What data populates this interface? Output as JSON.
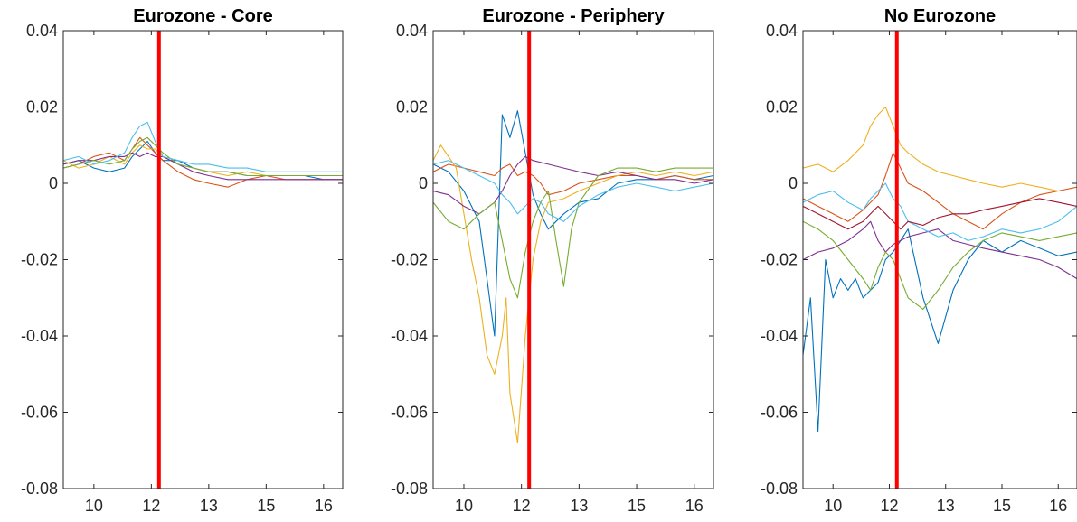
{
  "chart_data": [
    {
      "type": "line",
      "title": "Eurozone - Core",
      "xlabel": "",
      "ylabel": "",
      "xlim": [
        9.2,
        16.5
      ],
      "ylim": [
        -0.08,
        0.04
      ],
      "xticks": [
        10,
        11.5,
        13,
        14.5,
        16
      ],
      "xtick_labels": [
        "10",
        "12",
        "13",
        "15",
        "16"
      ],
      "yticks": [
        0.04,
        0.02,
        0,
        -0.02,
        -0.04,
        -0.06,
        -0.08
      ],
      "ytick_labels": [
        "0.04",
        "0.02",
        "0",
        "-0.02",
        "-0.04",
        "-0.06",
        "-0.08"
      ],
      "grid": false,
      "vline_x": 11.7,
      "vline_color": "#ff0000",
      "series": [
        {
          "color": "#0072BD",
          "x": [
            9.2,
            9.6,
            10.0,
            10.4,
            10.8,
            11.0,
            11.2,
            11.4,
            11.6,
            11.8,
            12.2,
            12.6,
            13.0,
            13.5,
            14.0,
            14.5,
            15.0,
            15.5,
            16.0,
            16.5
          ],
          "y": [
            0.005,
            0.006,
            0.004,
            0.003,
            0.004,
            0.007,
            0.009,
            0.011,
            0.008,
            0.006,
            0.006,
            0.004,
            0.003,
            0.003,
            0.002,
            0.002,
            0.002,
            0.002,
            0.001,
            0.001
          ]
        },
        {
          "color": "#D95319",
          "x": [
            9.2,
            9.6,
            10.0,
            10.4,
            10.8,
            11.0,
            11.2,
            11.4,
            11.6,
            11.8,
            12.2,
            12.6,
            13.0,
            13.5,
            14.0,
            14.5,
            15.0,
            15.5,
            16.0,
            16.5
          ],
          "y": [
            0.004,
            0.005,
            0.007,
            0.008,
            0.006,
            0.009,
            0.012,
            0.01,
            0.008,
            0.006,
            0.003,
            0.001,
            0.0,
            -0.001,
            0.001,
            0.002,
            0.001,
            0.001,
            0.001,
            0.001
          ]
        },
        {
          "color": "#EDB120",
          "x": [
            9.2,
            9.6,
            10.0,
            10.4,
            10.8,
            11.0,
            11.2,
            11.4,
            11.6,
            11.8,
            12.2,
            12.6,
            13.0,
            13.5,
            14.0,
            14.5,
            15.0,
            15.5,
            16.0,
            16.5
          ],
          "y": [
            0.006,
            0.004,
            0.005,
            0.007,
            0.005,
            0.008,
            0.01,
            0.009,
            0.009,
            0.007,
            0.005,
            0.004,
            0.003,
            0.002,
            0.003,
            0.002,
            0.002,
            0.002,
            0.002,
            0.002
          ]
        },
        {
          "color": "#7E2F8E",
          "x": [
            9.2,
            9.6,
            10.0,
            10.4,
            10.8,
            11.0,
            11.2,
            11.4,
            11.6,
            11.8,
            12.2,
            12.6,
            13.0,
            13.5,
            14.0,
            14.5,
            15.0,
            15.5,
            16.0,
            16.5
          ],
          "y": [
            0.005,
            0.006,
            0.006,
            0.007,
            0.007,
            0.008,
            0.007,
            0.008,
            0.007,
            0.007,
            0.005,
            0.003,
            0.002,
            0.001,
            0.001,
            0.001,
            0.001,
            0.001,
            0.001,
            0.001
          ]
        },
        {
          "color": "#77AC30",
          "x": [
            9.2,
            9.6,
            10.0,
            10.4,
            10.8,
            11.0,
            11.2,
            11.4,
            11.6,
            11.8,
            12.2,
            12.6,
            13.0,
            13.5,
            14.0,
            14.5,
            15.0,
            15.5,
            16.0,
            16.5
          ],
          "y": [
            0.004,
            0.005,
            0.006,
            0.005,
            0.006,
            0.009,
            0.011,
            0.012,
            0.01,
            0.008,
            0.005,
            0.004,
            0.003,
            0.003,
            0.002,
            0.002,
            0.002,
            0.002,
            0.002,
            0.002
          ]
        },
        {
          "color": "#4DBEEE",
          "x": [
            9.2,
            9.6,
            10.0,
            10.4,
            10.8,
            11.0,
            11.2,
            11.4,
            11.6,
            11.8,
            12.2,
            12.6,
            13.0,
            13.5,
            14.0,
            14.5,
            15.0,
            15.5,
            16.0,
            16.5
          ],
          "y": [
            0.006,
            0.007,
            0.005,
            0.006,
            0.008,
            0.012,
            0.015,
            0.016,
            0.011,
            0.007,
            0.006,
            0.005,
            0.005,
            0.004,
            0.004,
            0.003,
            0.003,
            0.003,
            0.003,
            0.003
          ]
        }
      ]
    },
    {
      "type": "line",
      "title": "Eurozone - Periphery",
      "xlabel": "",
      "ylabel": "",
      "xlim": [
        9.2,
        16.5
      ],
      "ylim": [
        -0.08,
        0.04
      ],
      "xticks": [
        10,
        11.5,
        13,
        14.5,
        16
      ],
      "xtick_labels": [
        "10",
        "12",
        "13",
        "15",
        "16"
      ],
      "yticks": [
        0.04,
        0.02,
        0,
        -0.02,
        -0.04,
        -0.06,
        -0.08
      ],
      "ytick_labels": [
        "0.04",
        "0.02",
        "0",
        "-0.02",
        "-0.04",
        "-0.06",
        "-0.08"
      ],
      "grid": false,
      "vline_x": 11.7,
      "vline_color": "#ff0000",
      "series": [
        {
          "color": "#0072BD",
          "x": [
            9.2,
            9.6,
            10.0,
            10.4,
            10.6,
            10.8,
            11.0,
            11.2,
            11.4,
            11.6,
            11.8,
            12.0,
            12.2,
            12.6,
            13.0,
            13.5,
            14.0,
            14.5,
            15.0,
            15.5,
            16.0,
            16.5
          ],
          "y": [
            0.005,
            0.003,
            -0.002,
            -0.01,
            -0.025,
            -0.04,
            0.018,
            0.012,
            0.019,
            0.008,
            -0.003,
            -0.008,
            -0.012,
            -0.008,
            -0.005,
            -0.004,
            0.0,
            0.001,
            0.001,
            0.002,
            0.001,
            0.002
          ]
        },
        {
          "color": "#D95319",
          "x": [
            9.2,
            9.6,
            10.0,
            10.4,
            10.8,
            11.0,
            11.2,
            11.4,
            11.6,
            11.8,
            12.0,
            12.2,
            12.6,
            13.0,
            13.5,
            14.0,
            14.5,
            15.0,
            15.5,
            16.0,
            16.5
          ],
          "y": [
            0.003,
            0.005,
            0.004,
            0.003,
            0.002,
            0.004,
            0.005,
            0.002,
            0.003,
            0.002,
            0.0,
            -0.003,
            -0.002,
            0.0,
            0.001,
            0.002,
            0.002,
            0.001,
            0.002,
            0.001,
            0.001
          ]
        },
        {
          "color": "#EDB120",
          "x": [
            9.2,
            9.4,
            9.8,
            10.2,
            10.4,
            10.6,
            10.8,
            11.0,
            11.1,
            11.2,
            11.4,
            11.6,
            11.8,
            12.0,
            12.2,
            12.6,
            13.0,
            13.5,
            14.0,
            14.5,
            15.0,
            15.5,
            16.0,
            16.5
          ],
          "y": [
            0.006,
            0.01,
            0.004,
            -0.02,
            -0.03,
            -0.045,
            -0.05,
            -0.04,
            -0.03,
            -0.055,
            -0.068,
            -0.04,
            -0.02,
            -0.01,
            -0.005,
            -0.004,
            -0.002,
            0.0,
            0.002,
            0.003,
            0.002,
            0.003,
            0.002,
            0.003
          ]
        },
        {
          "color": "#7E2F8E",
          "x": [
            9.2,
            9.6,
            10.0,
            10.4,
            10.8,
            11.0,
            11.2,
            11.4,
            11.6,
            11.8,
            12.2,
            12.6,
            13.0,
            13.5,
            14.0,
            14.5,
            15.0,
            15.5,
            16.0,
            16.5
          ],
          "y": [
            -0.002,
            -0.003,
            -0.006,
            -0.008,
            -0.005,
            -0.002,
            0.002,
            0.005,
            0.007,
            0.006,
            0.005,
            0.004,
            0.003,
            0.002,
            0.003,
            0.002,
            0.001,
            0.001,
            0.0,
            0.001
          ]
        },
        {
          "color": "#77AC30",
          "x": [
            9.2,
            9.6,
            10.0,
            10.4,
            10.8,
            11.0,
            11.2,
            11.4,
            11.6,
            11.8,
            12.0,
            12.2,
            12.4,
            12.6,
            12.8,
            13.0,
            13.5,
            14.0,
            14.5,
            15.0,
            15.5,
            16.0,
            16.5
          ],
          "y": [
            -0.005,
            -0.01,
            -0.012,
            -0.008,
            -0.005,
            -0.015,
            -0.025,
            -0.03,
            -0.018,
            -0.01,
            -0.005,
            -0.002,
            -0.015,
            -0.027,
            -0.012,
            -0.005,
            0.002,
            0.004,
            0.004,
            0.003,
            0.004,
            0.004,
            0.004
          ]
        },
        {
          "color": "#4DBEEE",
          "x": [
            9.2,
            9.6,
            10.0,
            10.4,
            10.8,
            11.0,
            11.2,
            11.4,
            11.6,
            11.8,
            12.0,
            12.2,
            12.6,
            13.0,
            13.5,
            14.0,
            14.5,
            15.0,
            15.5,
            16.0,
            16.5
          ],
          "y": [
            0.005,
            0.006,
            0.004,
            0.002,
            0.0,
            -0.003,
            -0.005,
            -0.008,
            -0.006,
            -0.004,
            -0.005,
            -0.008,
            -0.01,
            -0.006,
            -0.003,
            -0.001,
            0.0,
            -0.001,
            -0.002,
            -0.001,
            0.0
          ]
        }
      ]
    },
    {
      "type": "line",
      "title": "No Eurozone",
      "xlabel": "",
      "ylabel": "",
      "xlim": [
        9.2,
        16.5
      ],
      "ylim": [
        -0.08,
        0.04
      ],
      "xticks": [
        10,
        11.5,
        13,
        14.5,
        16
      ],
      "xtick_labels": [
        "10",
        "12",
        "13",
        "15",
        "16"
      ],
      "yticks": [
        0.04,
        0.02,
        0,
        -0.02,
        -0.04,
        -0.06,
        -0.08
      ],
      "ytick_labels": [
        "0.04",
        "0.02",
        "0",
        "-0.02",
        "-0.04",
        "-0.06",
        "-0.08"
      ],
      "grid": false,
      "vline_x": 11.7,
      "vline_color": "#ff0000",
      "series": [
        {
          "color": "#0072BD",
          "x": [
            9.2,
            9.4,
            9.6,
            9.8,
            10.0,
            10.2,
            10.4,
            10.6,
            10.8,
            11.0,
            11.2,
            11.4,
            11.6,
            11.8,
            12.0,
            12.4,
            12.8,
            13.2,
            13.6,
            14.0,
            14.5,
            15.0,
            15.5,
            16.0,
            16.5
          ],
          "y": [
            -0.045,
            -0.03,
            -0.065,
            -0.02,
            -0.03,
            -0.025,
            -0.028,
            -0.025,
            -0.03,
            -0.028,
            -0.026,
            -0.02,
            -0.018,
            -0.015,
            -0.012,
            -0.03,
            -0.042,
            -0.028,
            -0.02,
            -0.015,
            -0.018,
            -0.015,
            -0.017,
            -0.019,
            -0.018
          ]
        },
        {
          "color": "#D95319",
          "x": [
            9.2,
            9.6,
            10.0,
            10.4,
            10.8,
            11.0,
            11.2,
            11.4,
            11.6,
            11.8,
            12.0,
            12.4,
            12.8,
            13.2,
            13.6,
            14.0,
            14.5,
            15.0,
            15.5,
            16.0,
            16.5
          ],
          "y": [
            -0.004,
            -0.006,
            -0.008,
            -0.01,
            -0.007,
            -0.005,
            -0.003,
            0.002,
            0.008,
            0.004,
            0.0,
            -0.002,
            -0.005,
            -0.008,
            -0.01,
            -0.012,
            -0.008,
            -0.005,
            -0.003,
            -0.002,
            -0.001
          ]
        },
        {
          "color": "#EDB120",
          "x": [
            9.2,
            9.6,
            10.0,
            10.4,
            10.8,
            11.0,
            11.2,
            11.4,
            11.6,
            11.8,
            12.0,
            12.4,
            12.8,
            13.2,
            13.6,
            14.0,
            14.5,
            15.0,
            15.5,
            16.0,
            16.5
          ],
          "y": [
            0.004,
            0.005,
            0.003,
            0.006,
            0.01,
            0.015,
            0.018,
            0.02,
            0.015,
            0.01,
            0.008,
            0.005,
            0.003,
            0.002,
            0.001,
            0.0,
            -0.001,
            0.0,
            -0.001,
            -0.002,
            -0.002
          ]
        },
        {
          "color": "#7E2F8E",
          "x": [
            9.2,
            9.6,
            10.0,
            10.4,
            10.8,
            11.0,
            11.2,
            11.4,
            11.6,
            11.8,
            12.0,
            12.4,
            12.8,
            13.2,
            13.6,
            14.0,
            14.5,
            15.0,
            15.5,
            16.0,
            16.5
          ],
          "y": [
            -0.02,
            -0.018,
            -0.017,
            -0.015,
            -0.012,
            -0.01,
            -0.015,
            -0.018,
            -0.016,
            -0.015,
            -0.014,
            -0.013,
            -0.012,
            -0.015,
            -0.016,
            -0.017,
            -0.018,
            -0.019,
            -0.02,
            -0.022,
            -0.025
          ]
        },
        {
          "color": "#77AC30",
          "x": [
            9.2,
            9.6,
            10.0,
            10.4,
            10.8,
            11.0,
            11.2,
            11.4,
            11.6,
            11.8,
            12.0,
            12.4,
            12.8,
            13.2,
            13.6,
            14.0,
            14.5,
            15.0,
            15.5,
            16.0,
            16.5
          ],
          "y": [
            -0.01,
            -0.012,
            -0.015,
            -0.02,
            -0.025,
            -0.028,
            -0.022,
            -0.018,
            -0.02,
            -0.025,
            -0.03,
            -0.033,
            -0.028,
            -0.022,
            -0.018,
            -0.015,
            -0.013,
            -0.014,
            -0.015,
            -0.014,
            -0.013
          ]
        },
        {
          "color": "#4DBEEE",
          "x": [
            9.2,
            9.6,
            10.0,
            10.4,
            10.8,
            11.0,
            11.2,
            11.4,
            11.6,
            11.8,
            12.0,
            12.4,
            12.8,
            13.2,
            13.6,
            14.0,
            14.5,
            15.0,
            15.5,
            16.0,
            16.5
          ],
          "y": [
            -0.005,
            -0.003,
            -0.002,
            -0.005,
            -0.007,
            -0.004,
            -0.002,
            0.0,
            -0.004,
            -0.006,
            -0.01,
            -0.012,
            -0.014,
            -0.013,
            -0.015,
            -0.014,
            -0.012,
            -0.013,
            -0.012,
            -0.01,
            -0.006
          ]
        },
        {
          "color": "#A2142F",
          "x": [
            9.2,
            9.6,
            10.0,
            10.4,
            10.8,
            11.0,
            11.2,
            11.4,
            11.6,
            11.8,
            12.0,
            12.4,
            12.8,
            13.2,
            13.6,
            14.0,
            14.5,
            15.0,
            15.5,
            16.0,
            16.5
          ],
          "y": [
            -0.006,
            -0.008,
            -0.01,
            -0.012,
            -0.01,
            -0.008,
            -0.006,
            -0.008,
            -0.01,
            -0.012,
            -0.01,
            -0.011,
            -0.009,
            -0.008,
            -0.008,
            -0.007,
            -0.006,
            -0.005,
            -0.004,
            -0.005,
            -0.006
          ]
        }
      ]
    }
  ]
}
